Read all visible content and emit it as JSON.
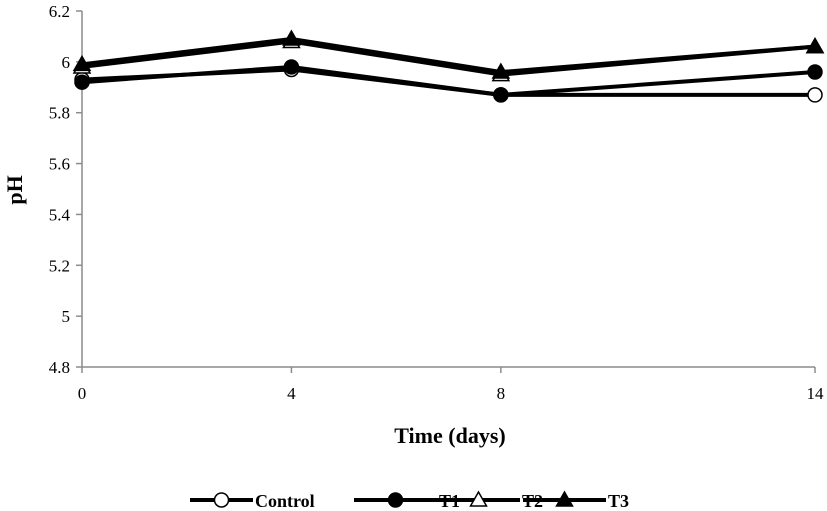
{
  "chart_data": {
    "type": "line",
    "title": "",
    "xlabel": "Time (days)",
    "ylabel": "pH",
    "x": [
      0,
      4,
      8,
      14
    ],
    "x_tick_labels": [
      "0",
      "4",
      "8",
      "14"
    ],
    "ylim": [
      4.8,
      6.2
    ],
    "y_ticks": [
      4.8,
      5,
      5.2,
      5.4,
      5.6,
      5.8,
      6,
      6.2
    ],
    "y_tick_labels": [
      "4.8",
      "5",
      "5.2",
      "5.4",
      "5.6",
      "5.8",
      "6",
      "6.2"
    ],
    "grid": false,
    "legend_position": "bottom",
    "series": [
      {
        "name": "Control",
        "marker": "open-circle",
        "values": [
          5.93,
          5.97,
          5.87,
          5.87
        ]
      },
      {
        "name": "T1",
        "marker": "filled-circle",
        "values": [
          5.92,
          5.98,
          5.87,
          5.96
        ]
      },
      {
        "name": "T2",
        "marker": "open-triangle",
        "values": [
          5.98,
          6.08,
          5.95,
          6.06
        ]
      },
      {
        "name": "T3",
        "marker": "filled-triangle",
        "values": [
          5.99,
          6.09,
          5.96,
          6.06
        ]
      }
    ],
    "colors": {
      "line": "#000000",
      "axis": "#8c8c8c",
      "marker_fill_open": "#ffffff"
    }
  }
}
